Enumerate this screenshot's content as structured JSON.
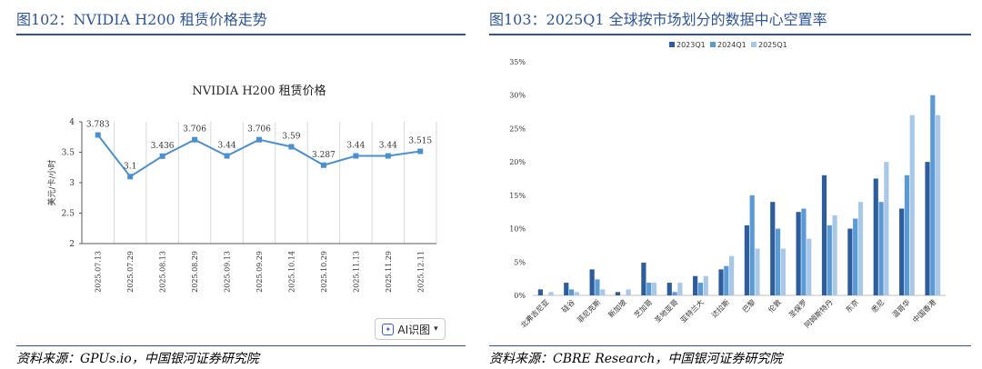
{
  "left_panel": {
    "title": "图102：NVIDIA H200 租赁价格走势",
    "source": "资料来源：GPUs.io，中国银河证券研究院"
  },
  "right_panel": {
    "title": "图103：2025Q1 全球按市场划分的数据中心空置率",
    "source": "资料来源：CBRE Research，中国银河证券研究院"
  },
  "ai_button": {
    "label": "AI识图",
    "icon": "ai-scan-icon"
  },
  "colors": {
    "line": "#4a90d0",
    "s2023": "#2e5d9e",
    "s2024": "#5b9bd5",
    "s2025": "#a9c8e8",
    "title": "#2e5597"
  },
  "chart_data": [
    {
      "type": "line",
      "title": "NVIDIA H200 租赁价格",
      "ylabel": "美元/卡/小时",
      "xlabel": "",
      "ylim": [
        2,
        4
      ],
      "yticks": [
        "2",
        "2.5",
        "3",
        "3.5",
        "4"
      ],
      "grid": "vertical",
      "categories": [
        "2025.07.13",
        "2025.07.29",
        "2025.08.13",
        "2025.08.29",
        "2025.09.13",
        "2025.09.29",
        "2025.10.14",
        "2025.10.29",
        "2025.11.13",
        "2025.11.29",
        "2025.12.11"
      ],
      "values": [
        3.783,
        3.1,
        3.436,
        3.706,
        3.44,
        3.706,
        3.59,
        3.287,
        3.44,
        3.44,
        3.515
      ],
      "labels": [
        "3.783",
        "3.1",
        "3.436",
        "3.706",
        "3.44",
        "3.706",
        "3.59",
        "3.287",
        "3.44",
        "3.44",
        "3.515"
      ]
    },
    {
      "type": "bar",
      "title": "",
      "legend_position": "top",
      "ylim": [
        0,
        35
      ],
      "yticks": [
        "0%",
        "5%",
        "10%",
        "15%",
        "20%",
        "25%",
        "30%",
        "35%"
      ],
      "categories": [
        "北弗吉尼亚",
        "硅谷",
        "菲尼克斯",
        "新加坡",
        "芝加哥",
        "圣地亚哥",
        "亚特兰大",
        "达拉斯",
        "巴黎",
        "伦敦",
        "圣保罗",
        "阿姆斯特丹",
        "东京",
        "悉尼",
        "温哥华",
        "中国香港"
      ],
      "series": [
        {
          "name": "2023Q1",
          "values": [
            0.9,
            1.9,
            3.9,
            0.5,
            4.9,
            1.9,
            2.9,
            3.9,
            10.5,
            14.0,
            12.5,
            18.0,
            10.0,
            17.5,
            13.0,
            20.0
          ]
        },
        {
          "name": "2024Q1",
          "values": [
            0.0,
            0.9,
            2.4,
            0.0,
            1.9,
            0.5,
            1.9,
            4.4,
            15.0,
            10.0,
            13.0,
            10.5,
            11.5,
            14.0,
            18.0,
            30.0
          ]
        },
        {
          "name": "2025Q1",
          "values": [
            0.5,
            0.5,
            0.9,
            0.9,
            1.9,
            1.9,
            2.9,
            5.9,
            7.0,
            7.0,
            8.5,
            12.0,
            14.0,
            20.0,
            27.0,
            27.0
          ]
        }
      ]
    }
  ]
}
